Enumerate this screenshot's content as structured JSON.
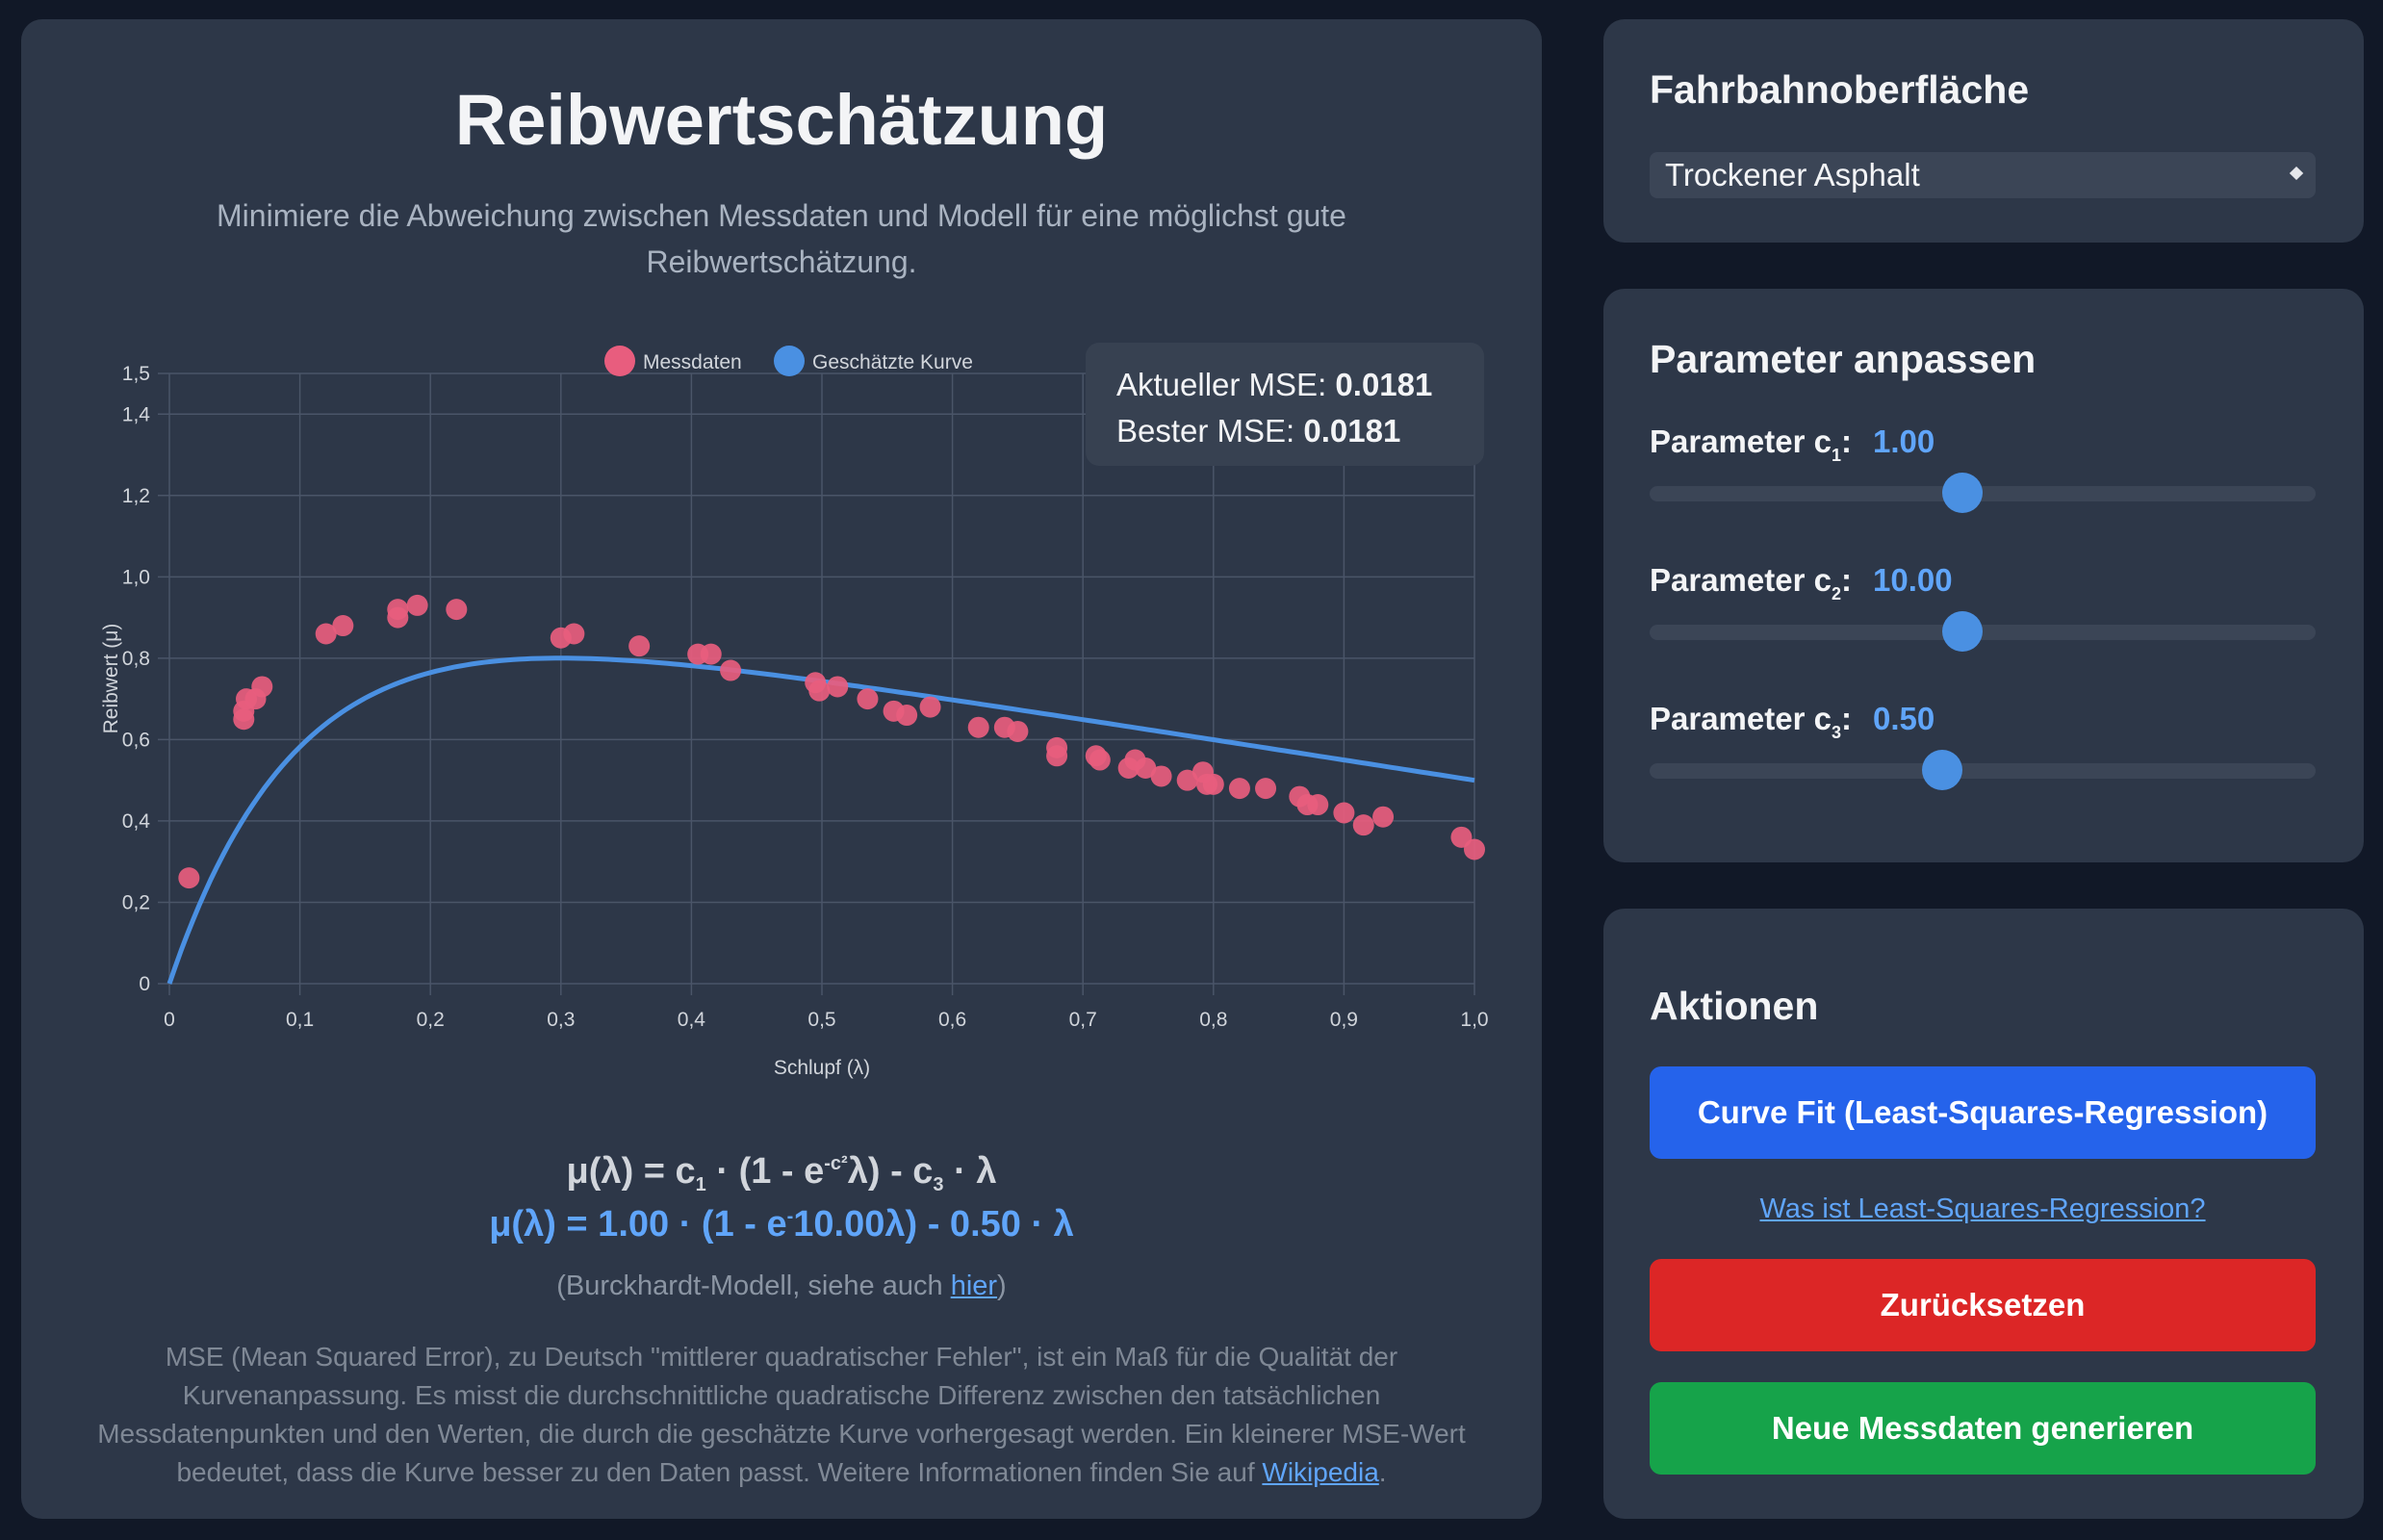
{
  "main": {
    "title": "Reibwertschätzung",
    "subtitle": "Minimiere die Abweichung zwischen Messdaten und Modell für eine möglichst gute Reibwertschätzung.",
    "mse": {
      "current_label": "Aktueller MSE:",
      "current_value": "0.0181",
      "best_label": "Bester MSE:",
      "best_value": "0.0181"
    },
    "formula_generic": {
      "lhs": "μ(λ) = c",
      "sub1": "1",
      "mid": " · (1 - e",
      "sup": "-c²",
      "tail": "λ) - c",
      "sub3": "3",
      "end": " · λ"
    },
    "formula_current": {
      "lhs": "μ(λ) = 1.00 · (1 - e",
      "sup": "-",
      "tail": "10.00λ) - 0.50 · λ"
    },
    "model_note": {
      "prefix": "(Burckhardt-Modell, siehe auch ",
      "link": "hier",
      "suffix": ")"
    },
    "mse_description": {
      "text": "MSE (Mean Squared Error), zu Deutsch \"mittlerer quadratischer Fehler\", ist ein Maß für die Qualität der Kurvenanpassung. Es misst die durchschnittliche quadratische Differenz zwischen den tatsächlichen Messdatenpunkten und den Werten, die durch die geschätzte Kurve vorhergesagt werden. Ein kleinerer MSE-Wert bedeutet, dass die Kurve besser zu den Daten passt. Weitere Informationen finden Sie auf ",
      "link": "Wikipedia",
      "suffix": "."
    }
  },
  "chart_data": {
    "type": "scatter",
    "title": "",
    "xlabel": "Schlupf (λ)",
    "ylabel": "Reibwert (μ)",
    "xlim": [
      0,
      1.0
    ],
    "ylim": [
      0,
      1.5
    ],
    "x_ticks": [
      "0",
      "0,1",
      "0,2",
      "0,3",
      "0,4",
      "0,5",
      "0,6",
      "0,7",
      "0,8",
      "0,9",
      "1,0"
    ],
    "y_ticks": [
      {
        "value": 0,
        "label": "0"
      },
      {
        "value": 0.2,
        "label": "0,2"
      },
      {
        "value": 0.4,
        "label": "0,4"
      },
      {
        "value": 0.6,
        "label": "0,6"
      },
      {
        "value": 0.8,
        "label": "0,8"
      },
      {
        "value": 1.0,
        "label": "1,0"
      },
      {
        "value": 1.2,
        "label": "1,2"
      },
      {
        "value": 1.4,
        "label": "1,4"
      },
      {
        "value": 1.5,
        "label": "1,5"
      }
    ],
    "grid": true,
    "legend_position": "top-center",
    "series": [
      {
        "name": "Messdaten",
        "kind": "points",
        "color": "#e85d7e",
        "points": [
          [
            0.015,
            0.26
          ],
          [
            0.057,
            0.65
          ],
          [
            0.057,
            0.67
          ],
          [
            0.059,
            0.7
          ],
          [
            0.066,
            0.7
          ],
          [
            0.071,
            0.73
          ],
          [
            0.12,
            0.86
          ],
          [
            0.133,
            0.88
          ],
          [
            0.175,
            0.9
          ],
          [
            0.175,
            0.92
          ],
          [
            0.19,
            0.93
          ],
          [
            0.22,
            0.92
          ],
          [
            0.3,
            0.85
          ],
          [
            0.31,
            0.86
          ],
          [
            0.36,
            0.83
          ],
          [
            0.405,
            0.81
          ],
          [
            0.415,
            0.81
          ],
          [
            0.43,
            0.77
          ],
          [
            0.495,
            0.74
          ],
          [
            0.498,
            0.72
          ],
          [
            0.512,
            0.73
          ],
          [
            0.535,
            0.7
          ],
          [
            0.555,
            0.67
          ],
          [
            0.565,
            0.66
          ],
          [
            0.583,
            0.68
          ],
          [
            0.62,
            0.63
          ],
          [
            0.64,
            0.63
          ],
          [
            0.65,
            0.62
          ],
          [
            0.68,
            0.56
          ],
          [
            0.68,
            0.58
          ],
          [
            0.71,
            0.56
          ],
          [
            0.713,
            0.55
          ],
          [
            0.735,
            0.53
          ],
          [
            0.74,
            0.55
          ],
          [
            0.748,
            0.53
          ],
          [
            0.76,
            0.51
          ],
          [
            0.78,
            0.5
          ],
          [
            0.792,
            0.52
          ],
          [
            0.795,
            0.49
          ],
          [
            0.8,
            0.49
          ],
          [
            0.82,
            0.48
          ],
          [
            0.84,
            0.48
          ],
          [
            0.866,
            0.46
          ],
          [
            0.872,
            0.44
          ],
          [
            0.88,
            0.44
          ],
          [
            0.9,
            0.42
          ],
          [
            0.915,
            0.39
          ],
          [
            0.93,
            0.41
          ],
          [
            0.99,
            0.36
          ],
          [
            1.0,
            0.33
          ]
        ]
      },
      {
        "name": "Geschätzte Kurve",
        "kind": "line",
        "color": "#4a90e2",
        "params": {
          "c1": 1.0,
          "c2": 10.0,
          "c3": 0.5
        },
        "x_range": [
          0,
          1.0
        ]
      }
    ]
  },
  "sidebar": {
    "surface": {
      "heading": "Fahrbahnoberfläche",
      "selected": "Trockener Asphalt"
    },
    "params": {
      "heading": "Parameter anpassen",
      "items": [
        {
          "prefix": "Parameter c",
          "sub": "1",
          "suffix": ":",
          "value": "1.00",
          "position": 0.47
        },
        {
          "prefix": "Parameter c",
          "sub": "2",
          "suffix": ":",
          "value": "10.00",
          "position": 0.47
        },
        {
          "prefix": "Parameter c",
          "sub": "3",
          "suffix": ":",
          "value": "0.50",
          "position": 0.44
        }
      ]
    },
    "actions": {
      "heading": "Aktionen",
      "curve_fit": "Curve Fit (Least-Squares-Regression)",
      "lsq_link": "Was ist Least-Squares-Regression?",
      "reset": "Zurücksetzen",
      "new_data": "Neue Messdaten generieren"
    }
  }
}
